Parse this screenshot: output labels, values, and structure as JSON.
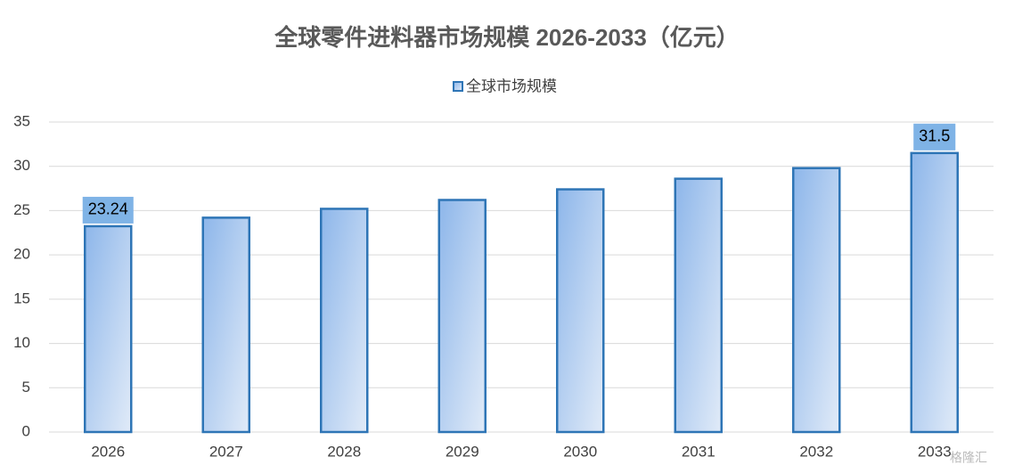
{
  "chart_data": {
    "type": "bar",
    "title": "全球零件进料器市场规模 2026-2033（亿元）",
    "categories": [
      "2026",
      "2027",
      "2028",
      "2029",
      "2030",
      "2031",
      "2032",
      "2033"
    ],
    "series": [
      {
        "name": "全球市场规模",
        "color": "#2e75b6",
        "values": [
          23.24,
          24.2,
          25.2,
          26.2,
          27.4,
          28.6,
          29.8,
          31.5
        ],
        "value_labels": [
          "23.24",
          null,
          null,
          null,
          null,
          null,
          null,
          "31.5"
        ]
      }
    ],
    "ylim": [
      0,
      35
    ],
    "yticks": [
      0,
      5,
      10,
      15,
      20,
      25,
      30,
      35
    ],
    "grid": true,
    "legend": "top",
    "watermark": "格隆汇"
  }
}
